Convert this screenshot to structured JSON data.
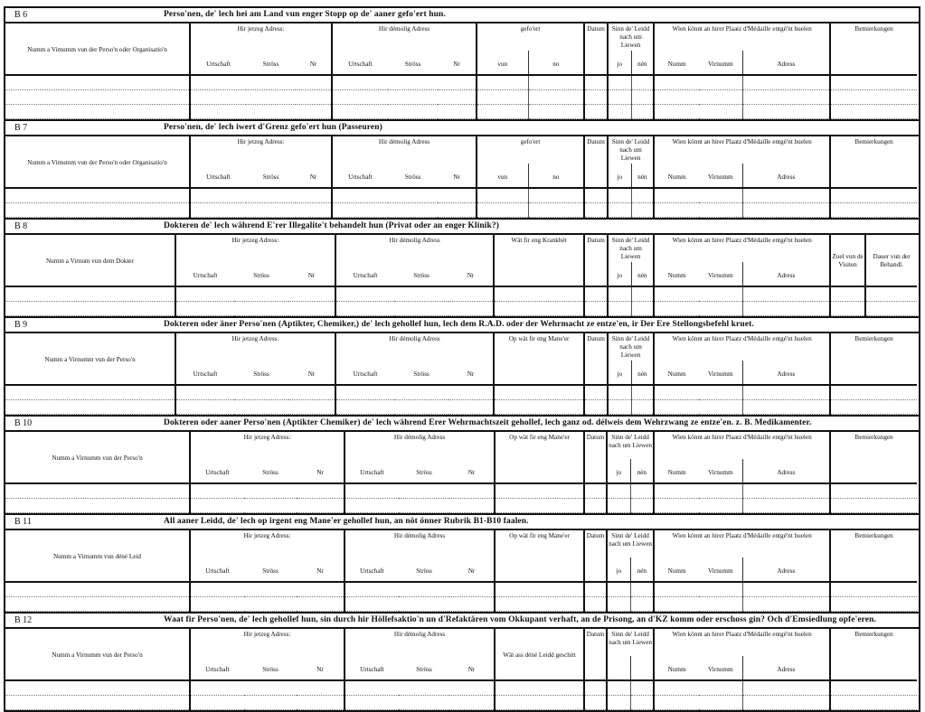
{
  "sections": [
    {
      "label": "B 6",
      "title": "Perso'nen, de' lech hei am Land vun enger Stopp op de' aaner gefo'ert hun.",
      "layout": "A",
      "rows": 3,
      "columns": [
        {
          "kind": "name",
          "label": "Numm a Vimumm vun der Perso'n oder Organisatio'n"
        },
        {
          "kind": "addr",
          "label": "Hir jetzeg Adress:",
          "sub": [
            "Urtschaft",
            "Ströss",
            "Nr"
          ]
        },
        {
          "kind": "addr",
          "label": "Hir démolig Adress",
          "sub": [
            "Urtschaft",
            "Ströss",
            "Nr"
          ]
        },
        {
          "kind": "pair",
          "label": "gefo'ert",
          "sub": [
            "vun",
            "no"
          ]
        },
        {
          "kind": "text",
          "label": "Datum"
        },
        {
          "kind": "pair",
          "label": "Sinn de' Leidd nach um Liewen",
          "sub": [
            "jo",
            "nén"
          ]
        },
        {
          "kind": "wien",
          "label": "Wien könnt an hirer Plaatz d'Médaille entgé'nt huelen",
          "sub": [
            "Numm",
            "Virnumm",
            "Adress"
          ]
        },
        {
          "kind": "text",
          "label": "Bemierkungen"
        }
      ]
    },
    {
      "label": "B 7",
      "title": "Perso'nen, de' lech iwert d'Grenz gefo'ert hun (Passeuren)",
      "layout": "A",
      "rows": 2,
      "columns": [
        {
          "kind": "name",
          "label": "Numm a Vimumm vun der Perso'n oder Organisatio'n"
        },
        {
          "kind": "addr",
          "label": "Hir jetzeg Adress:",
          "sub": [
            "Urtschaft",
            "Ströss",
            "Nr"
          ]
        },
        {
          "kind": "addr",
          "label": "Hir démolig Adress",
          "sub": [
            "Urtschaft",
            "Ströss",
            "Nr"
          ]
        },
        {
          "kind": "pair",
          "label": "gefo'ert",
          "sub": [
            "vun",
            "no"
          ]
        },
        {
          "kind": "text",
          "label": "Datum"
        },
        {
          "kind": "pair",
          "label": "Sinn de' Leidd nach um Liewen",
          "sub": [
            "jo",
            "nén"
          ]
        },
        {
          "kind": "wien",
          "label": "Wien könnt an hirer Plaatz d'Médaille entgé'nt huelen",
          "sub": [
            "Numm",
            "Virnumm",
            "Adress"
          ]
        },
        {
          "kind": "text",
          "label": "Bemierkungen"
        }
      ]
    },
    {
      "label": "B 8",
      "title": "Dokteren de' lech während E'rer Illegalite't behandelt hun (Privat oder an enger Klinik?)",
      "layout": "B",
      "rows": 2,
      "columns": [
        {
          "kind": "name",
          "label": "Numm a Virnum vun dem Dokter"
        },
        {
          "kind": "addr",
          "label": "Hir jetzeg Adress:",
          "sub": [
            "Urtschaft",
            "Ströss",
            "Nr"
          ]
        },
        {
          "kind": "addr",
          "label": "Hir démolig Adress",
          "sub": [
            "Urtschaft",
            "Ströss",
            "Nr"
          ]
        },
        {
          "kind": "text",
          "label": "Wät fir eng Krankhét"
        },
        {
          "kind": "text",
          "label": "Datum"
        },
        {
          "kind": "pair",
          "label": "Sinn de' Leidd nach um Liewen",
          "sub": [
            "jo",
            "nén"
          ]
        },
        {
          "kind": "wien",
          "label": "Wien könnt an hirer Plaatz d'Médaille entgé'nt huelen",
          "sub": [
            "Numm",
            "Virnumm",
            "Adress"
          ]
        },
        {
          "kind": "name",
          "label": "Zuel vun de Visiten"
        },
        {
          "kind": "name",
          "label": "Dauer vun der Behandl."
        }
      ]
    },
    {
      "label": "B 9",
      "title": "Dokteren oder äner Perso'nen (Aptikter, Chemiker,) de' lech gehollef hun, lech dem R.A.D. oder der Wehrmacht ze entze'en, ir Der Ere Stellongsbefehl kruet.",
      "layout": "C",
      "rows": 2,
      "columns": [
        {
          "kind": "name",
          "label": "Numm a Virnumm vun der Perso'n"
        },
        {
          "kind": "addr",
          "label": "Hir jetzeg Adress:",
          "sub": [
            "Urtschaft",
            "Ströss",
            "Nr"
          ]
        },
        {
          "kind": "addr",
          "label": "Hir démolig Adress",
          "sub": [
            "Urtschaft",
            "Ströss",
            "Nr"
          ]
        },
        {
          "kind": "text",
          "label": "Op wät fir eng Mane'er"
        },
        {
          "kind": "text",
          "label": "Datum"
        },
        {
          "kind": "pair",
          "label": "Sinn de' Leidd nach um Liewen",
          "sub": [
            "jo",
            "nén"
          ]
        },
        {
          "kind": "wien",
          "label": "Wien könnt an hirer Plaatz d'Médaille entgé'nt huelen",
          "sub": [
            "Numm",
            "Virnumm",
            "Adress"
          ]
        },
        {
          "kind": "text",
          "label": "Bemierkungen"
        }
      ]
    },
    {
      "label": "B 10",
      "title": "Dokteren oder aaner Perso'nen (Aptikter Chemiker) de' lech während Erer Wehrmachtszeit gehollef, lech ganz od. délweis dem Wehrzwang ze entze'en. z. B. Medikamenter.",
      "layout": "D",
      "rows": 2,
      "columns": [
        {
          "kind": "name",
          "label": "Numm a Virnumm vun der Perso'n"
        },
        {
          "kind": "addr",
          "label": "Hir jetzeg Adress:",
          "sub": [
            "Urtschaft",
            "Ströss",
            "Nr"
          ]
        },
        {
          "kind": "addr",
          "label": "Hir démolig Adress",
          "sub": [
            "Urtschaft",
            "Ströss",
            "Nr"
          ]
        },
        {
          "kind": "text",
          "label": "Op wät fir eng Mane'er"
        },
        {
          "kind": "text",
          "label": "Datum"
        },
        {
          "kind": "pair",
          "label": "Sinn de' Leidd nach um Liewen",
          "sub": [
            "jo",
            "nén"
          ]
        },
        {
          "kind": "wien",
          "label": "Wien könnt an hirer Plaatz d'Médaille entgé'nt huelen",
          "sub": [
            "Numm",
            "Virnumm",
            "Adress"
          ]
        },
        {
          "kind": "text",
          "label": "Bemierkungen"
        }
      ]
    },
    {
      "label": "B 11",
      "title": "All aaner Leidd, de' lech op irgent eng Mane'er gehollef hun, an nöt önner Rubrik B1-B10 faalen.",
      "layout": "D",
      "rows": 2,
      "columns": [
        {
          "kind": "name",
          "label": "Numm a Virnumm vun déné Leid"
        },
        {
          "kind": "addr",
          "label": "Hir jetzeg Adress:",
          "sub": [
            "Urtschaft",
            "Ströss",
            "Nr"
          ]
        },
        {
          "kind": "addr",
          "label": "Hir démolig Adress",
          "sub": [
            "Urtschaft",
            "Ströss",
            "Nr"
          ]
        },
        {
          "kind": "text",
          "label": "Op wät fir eng Mane'er"
        },
        {
          "kind": "text",
          "label": "Datum"
        },
        {
          "kind": "pair",
          "label": "Sinn de' Leidd nach um Liewen",
          "sub": [
            "jo",
            "nén"
          ]
        },
        {
          "kind": "wien",
          "label": "Wien könnt an hirer Plaatz d'Médaille entgé'nt huelen",
          "sub": [
            "Numm",
            "Virnumm",
            "Adress"
          ]
        },
        {
          "kind": "text",
          "label": "Bemierkungen"
        }
      ]
    },
    {
      "label": "B 12",
      "title": "Waat fir Perso'nen, de' lech gehollef hun, sin durch hir Höllefsaktio'n un d'Refaktären vom Okkupant verhaft, an de Prisong, an d'KZ komm oder erschoss gin? Och d'Emsiedlung opfe'eren.",
      "layout": "D",
      "rows": 2,
      "columns": [
        {
          "kind": "name",
          "label": "Numm a Virnumm vun der Perso'n"
        },
        {
          "kind": "addr",
          "label": "Hir jetzeg Adress:",
          "sub": [
            "Urtschaft",
            "Ströss",
            "Nr"
          ]
        },
        {
          "kind": "addr",
          "label": "Hir démolig Adress",
          "sub": [
            "Urtschaft",
            "Ströss",
            "Nr"
          ]
        },
        {
          "kind": "name",
          "label": "Wät ass déné Leidd geschitt"
        },
        {
          "kind": "text",
          "label": "Datum"
        },
        {
          "kind": "pair",
          "label": "Sinn de' Leidd nach um Liewen",
          "sub": [
            "",
            ""
          ]
        },
        {
          "kind": "wien",
          "label": "Wien könnt an hirer Plaatz d'Médaille entgé'nt huelen",
          "sub": [
            "Numm",
            "Virnumm",
            "Adress"
          ]
        },
        {
          "kind": "text",
          "label": "Bemierkungen"
        }
      ]
    }
  ]
}
